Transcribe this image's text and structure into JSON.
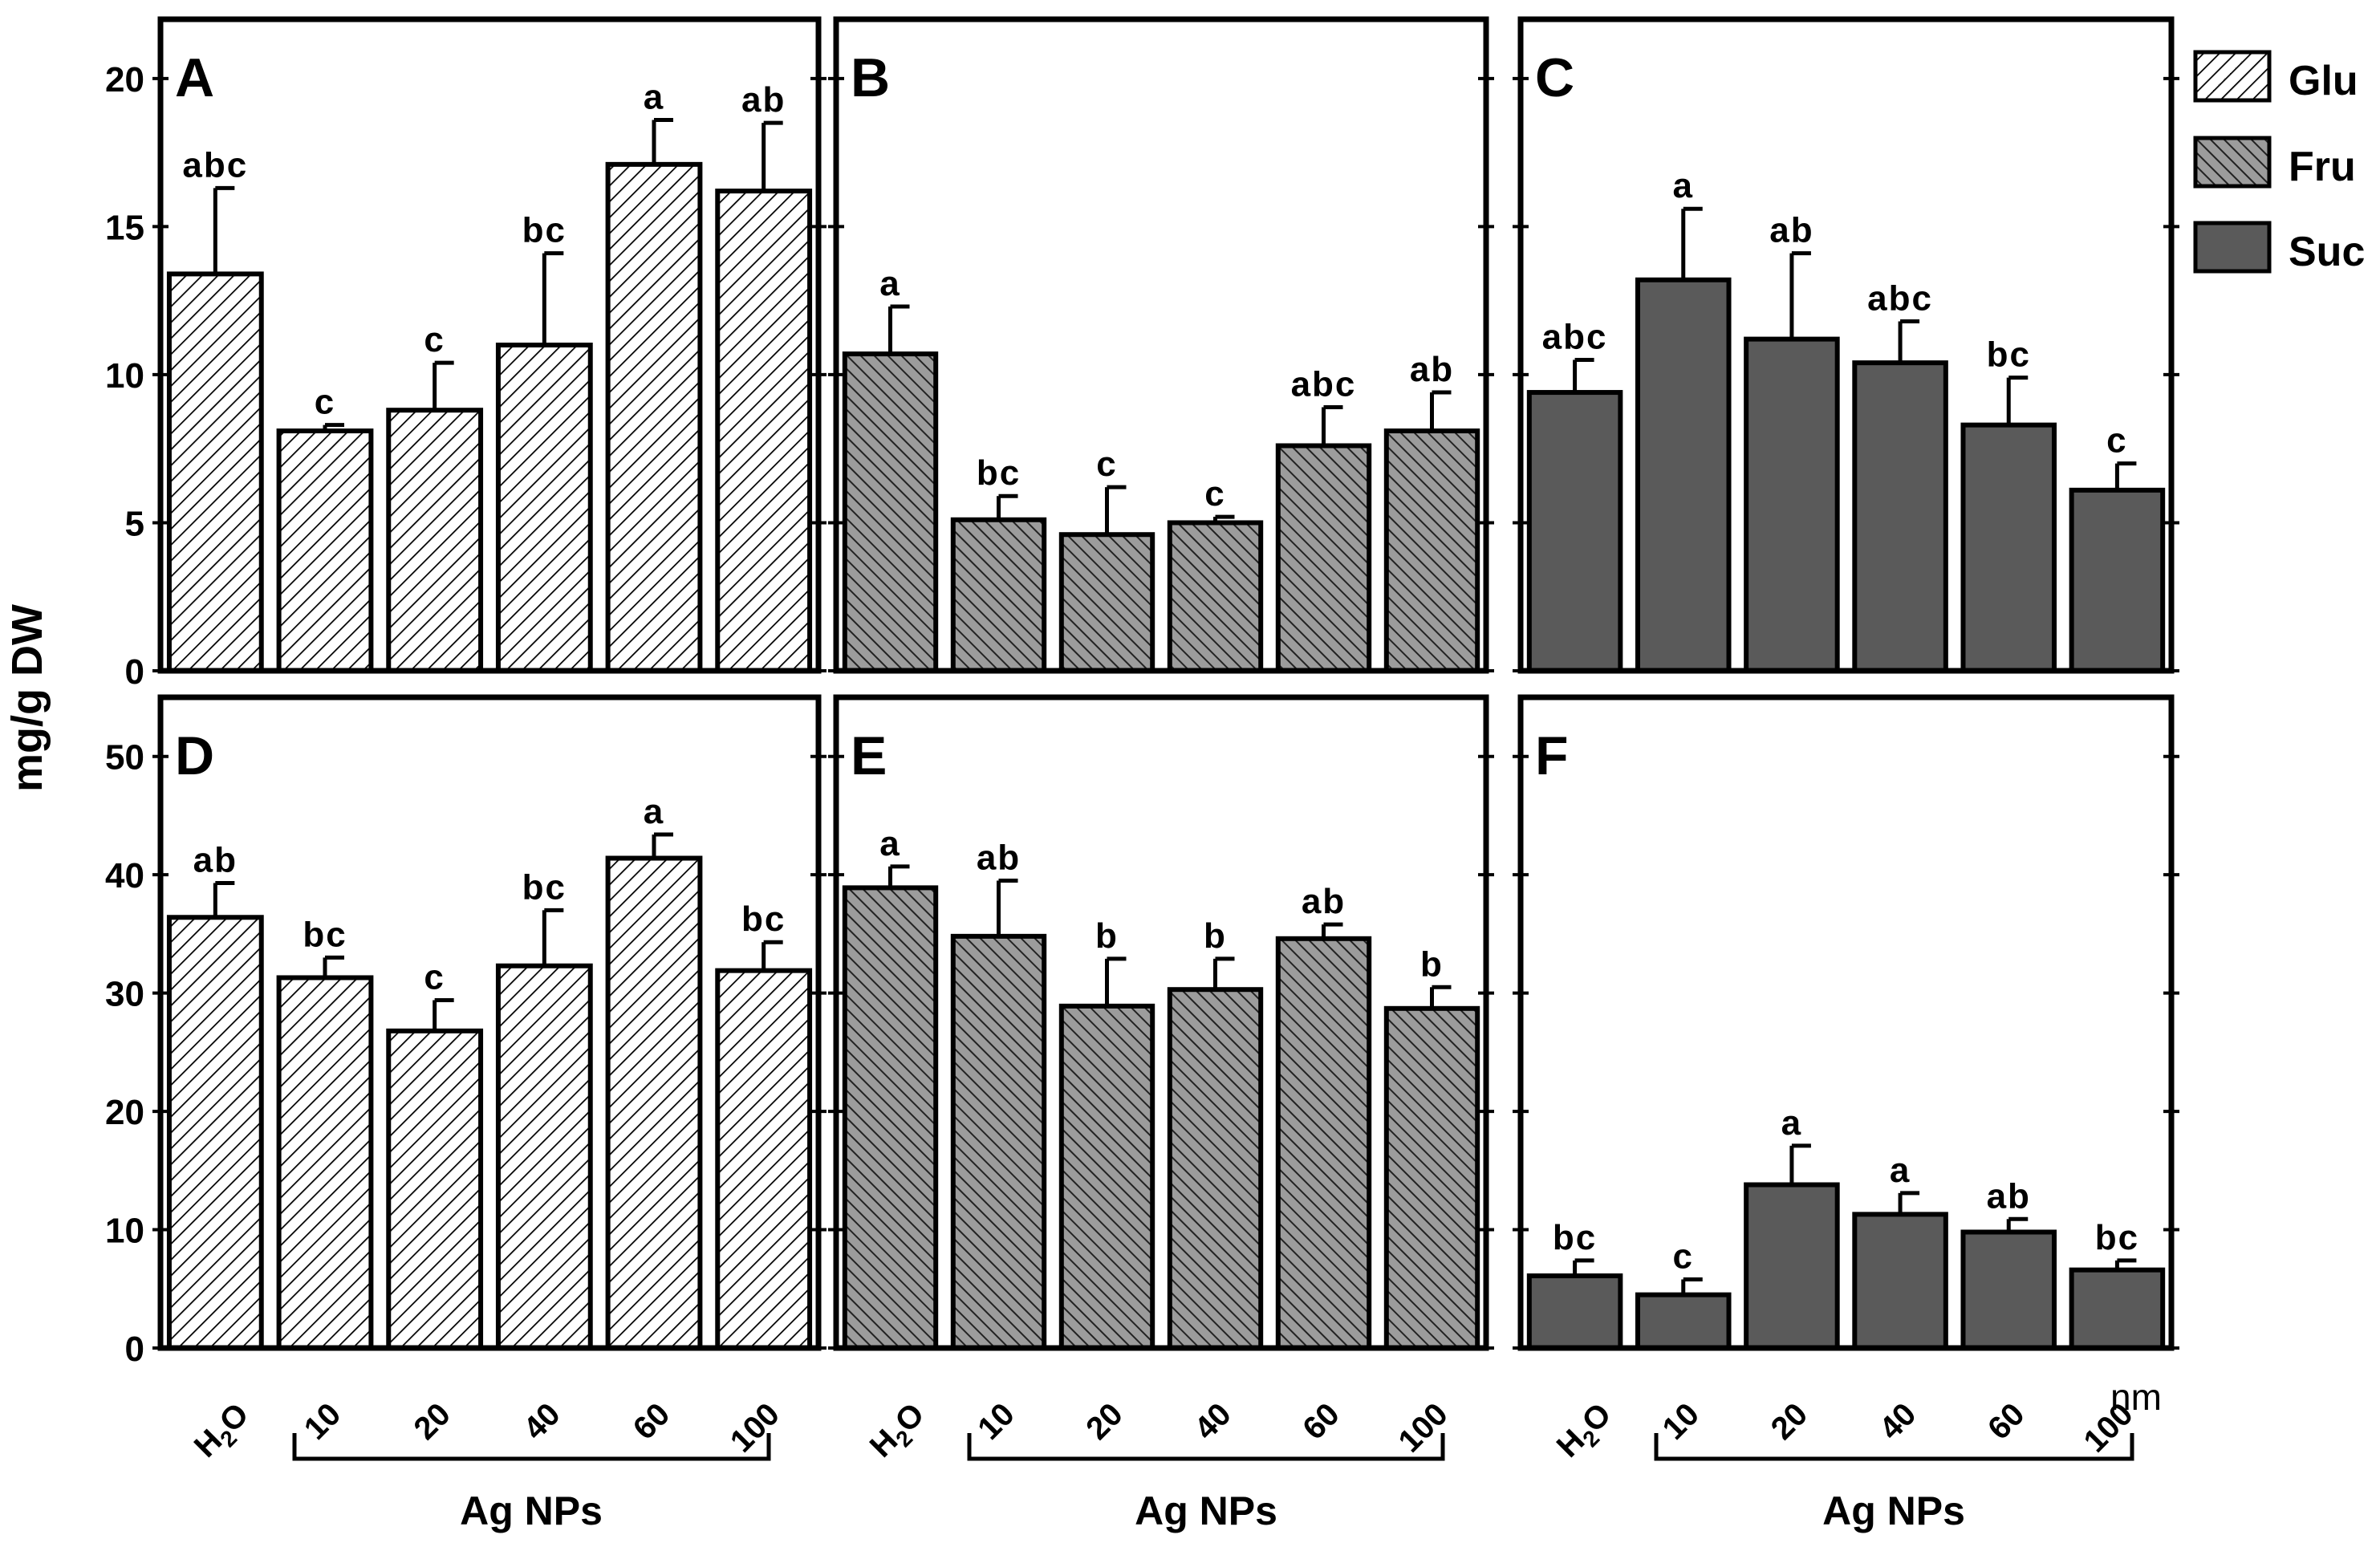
{
  "figure": {
    "y_axis_label": "mg/g DW",
    "x_group_label": "Ag NPs",
    "x_unit": "nm",
    "water_label_main": "H",
    "water_label_sub": "2",
    "water_label_tail": "O",
    "legend": [
      {
        "label": "Glu",
        "pattern": "light-hatch"
      },
      {
        "label": "Fru",
        "pattern": "dark-hatch"
      },
      {
        "label": "Suc",
        "pattern": "solid"
      }
    ],
    "colors": {
      "frame": "#000000",
      "suc_fill": "#5a5a5a",
      "fru_bg": "#9c9c9c",
      "glu_bg": "#ffffff"
    }
  },
  "chart_data": [
    {
      "panel": "A",
      "type": "bar",
      "series": "Glu",
      "categories": [
        "H2O",
        "10",
        "20",
        "40",
        "60",
        "100"
      ],
      "values": [
        13.4,
        8.1,
        8.8,
        11.0,
        17.1,
        16.2
      ],
      "errors": [
        2.9,
        0.2,
        1.6,
        3.1,
        1.5,
        2.3
      ],
      "letters": [
        "abc",
        "c",
        "c",
        "bc",
        "a",
        "ab"
      ],
      "ylim": [
        0,
        22
      ],
      "yticks": [
        "0",
        "5",
        "10",
        "15",
        "20"
      ]
    },
    {
      "panel": "B",
      "type": "bar",
      "series": "Fru",
      "categories": [
        "H2O",
        "10",
        "20",
        "40",
        "60",
        "100"
      ],
      "values": [
        10.7,
        5.1,
        4.6,
        5.0,
        7.6,
        8.1
      ],
      "errors": [
        1.6,
        0.8,
        1.6,
        0.2,
        1.3,
        1.3
      ],
      "letters": [
        "a",
        "bc",
        "c",
        "c",
        "abc",
        "ab"
      ],
      "ylim": [
        0,
        22
      ]
    },
    {
      "panel": "C",
      "type": "bar",
      "series": "Suc",
      "categories": [
        "H2O",
        "10",
        "20",
        "40",
        "60",
        "100"
      ],
      "values": [
        9.4,
        13.2,
        11.2,
        10.4,
        8.3,
        6.1
      ],
      "errors": [
        1.1,
        2.4,
        2.9,
        1.4,
        1.6,
        0.9
      ],
      "letters": [
        "abc",
        "a",
        "ab",
        "abc",
        "bc",
        "c"
      ],
      "ylim": [
        0,
        22
      ]
    },
    {
      "panel": "D",
      "type": "bar",
      "series": "Glu",
      "categories": [
        "H2O",
        "10",
        "20",
        "40",
        "60",
        "100"
      ],
      "values": [
        36.4,
        31.3,
        26.8,
        32.3,
        41.4,
        31.9
      ],
      "errors": [
        2.9,
        1.7,
        2.6,
        4.7,
        2.0,
        2.4
      ],
      "letters": [
        "ab",
        "bc",
        "c",
        "bc",
        "a",
        "bc"
      ],
      "ylim": [
        0,
        55
      ],
      "yticks": [
        "0",
        "10",
        "20",
        "30",
        "40",
        "50"
      ]
    },
    {
      "panel": "E",
      "type": "bar",
      "series": "Fru",
      "categories": [
        "H2O",
        "10",
        "20",
        "40",
        "60",
        "100"
      ],
      "values": [
        38.9,
        34.8,
        28.9,
        30.3,
        34.6,
        28.7
      ],
      "errors": [
        1.8,
        4.7,
        4.0,
        2.6,
        1.2,
        1.8
      ],
      "letters": [
        "a",
        "ab",
        "b",
        "b",
        "ab",
        "b"
      ],
      "ylim": [
        0,
        55
      ]
    },
    {
      "panel": "F",
      "type": "bar",
      "series": "Suc",
      "categories": [
        "H2O",
        "10",
        "20",
        "40",
        "60",
        "100"
      ],
      "values": [
        6.1,
        4.5,
        13.8,
        11.3,
        9.8,
        6.6
      ],
      "errors": [
        1.3,
        1.3,
        3.3,
        1.8,
        1.1,
        0.8
      ],
      "letters": [
        "bc",
        "c",
        "a",
        "a",
        "ab",
        "bc"
      ],
      "ylim": [
        0,
        55
      ]
    }
  ]
}
